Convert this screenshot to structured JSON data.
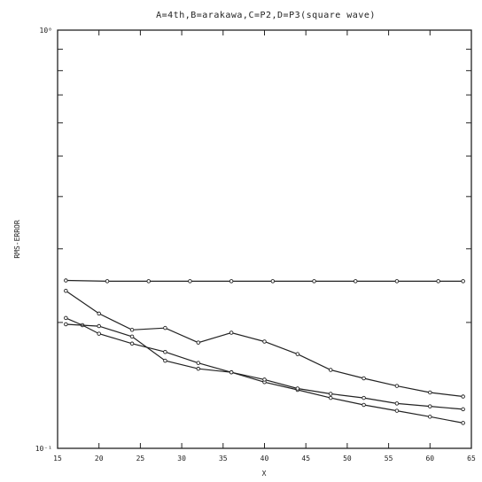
{
  "chart_data": {
    "type": "line",
    "title": "A=4th,B=arakawa,C=P2,D=P3(square wave)",
    "xlabel": "X",
    "ylabel": "RMS-ERROR",
    "xlim": [
      15,
      65
    ],
    "ylim": [
      0.1,
      1
    ],
    "yscale": "log",
    "grid": false,
    "x_ticks": [
      15,
      20,
      25,
      30,
      35,
      40,
      45,
      50,
      55,
      60,
      65
    ],
    "x_tick_labels": [
      "15",
      "20",
      "25",
      "30",
      "35",
      "40",
      "45",
      "50",
      "55",
      "60",
      "65"
    ],
    "y_ticks": [
      0.1,
      1
    ],
    "y_tick_labels": [
      "10⁻¹",
      "10⁰"
    ],
    "series": [
      {
        "x": [
          16,
          21,
          26,
          31,
          36,
          41,
          46,
          51,
          56,
          61,
          64
        ],
        "values": [
          0.252,
          0.251,
          0.251,
          0.251,
          0.251,
          0.251,
          0.251,
          0.251,
          0.251,
          0.251,
          0.251
        ]
      },
      {
        "x": [
          16,
          20,
          24,
          28,
          32,
          36,
          40,
          44,
          48,
          52,
          56,
          60,
          64
        ],
        "values": [
          0.238,
          0.21,
          0.192,
          0.194,
          0.179,
          0.189,
          0.18,
          0.168,
          0.154,
          0.147,
          0.141,
          0.136,
          0.133
        ]
      },
      {
        "x": [
          16,
          18,
          20,
          24,
          28,
          32,
          36,
          40,
          44,
          48,
          52,
          56,
          60,
          64
        ],
        "values": [
          0.205,
          0.197,
          0.188,
          0.178,
          0.17,
          0.16,
          0.152,
          0.144,
          0.138,
          0.132,
          0.127,
          0.123,
          0.119,
          0.115
        ]
      },
      {
        "x": [
          16,
          20,
          24,
          28,
          32,
          36,
          40,
          44,
          48,
          52,
          56,
          60,
          64
        ],
        "values": [
          0.198,
          0.196,
          0.185,
          0.162,
          0.155,
          0.152,
          0.146,
          0.139,
          0.135,
          0.132,
          0.128,
          0.126,
          0.124
        ]
      }
    ]
  }
}
